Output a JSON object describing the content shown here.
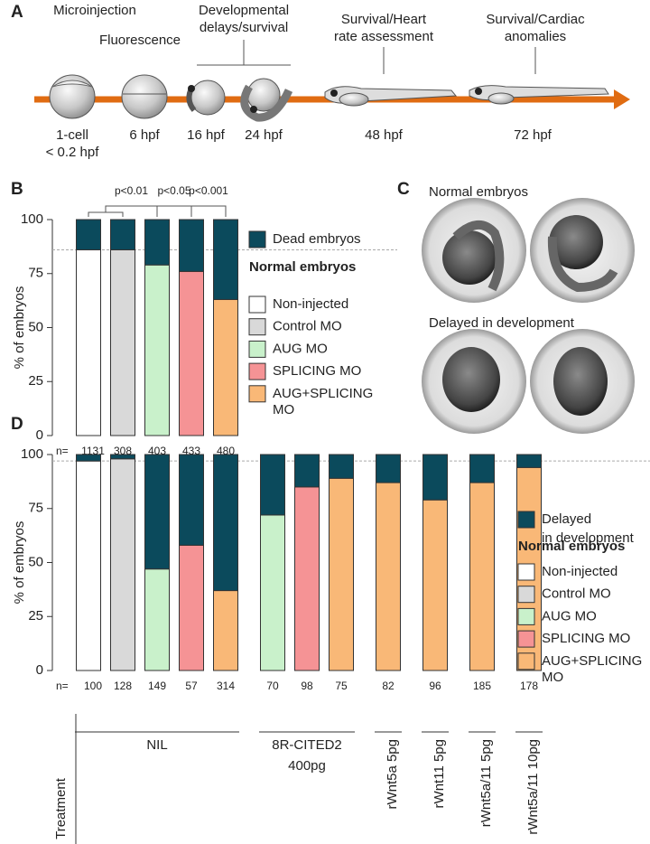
{
  "panel_a": {
    "label": "A",
    "steps": [
      [
        "Microinjection"
      ],
      [
        "Fluorescence"
      ],
      [
        "Developmental",
        "delays/survival"
      ],
      [
        "Survival/Heart",
        "rate assessment"
      ],
      [
        "Survival/Cardiac",
        "anomalies"
      ]
    ],
    "times": [
      [
        "1-cell",
        "< 0.2 hpf"
      ],
      [
        "6 hpf"
      ],
      [
        "16 hpf"
      ],
      [
        "24 hpf"
      ],
      [
        "48 hpf"
      ],
      [
        "72 hpf"
      ]
    ]
  },
  "panel_c": {
    "label": "C",
    "captions": [
      "Normal embryos",
      "Delayed in development"
    ]
  },
  "chart_data": [
    {
      "type": "stacked_bar",
      "panel_label": "B",
      "y_label": "% of embryos",
      "ylim": [
        0,
        100
      ],
      "yticks": [
        0,
        25,
        50,
        75,
        100
      ],
      "reference_line": 86,
      "n_prefix": "n=",
      "top_series": {
        "name": [
          "Dead embryos"
        ],
        "color": "#0b4a5c"
      },
      "legend_title": "Normal embryos",
      "legend": [
        {
          "name": [
            "Non-injected"
          ],
          "color": "#ffffff"
        },
        {
          "name": [
            "Control MO"
          ],
          "color": "#d9d9d9"
        },
        {
          "name": [
            "AUG MO"
          ],
          "color": "#c9f1cb"
        },
        {
          "name": [
            "SPLICING MO"
          ],
          "color": "#f59395"
        },
        {
          "name": [
            "AUG+SPLICING",
            "MO"
          ],
          "color": "#f9b877"
        }
      ],
      "groups": [
        {
          "bars": [
            {
              "color": "#ffffff",
              "normal": 86,
              "top": 14,
              "n": 1131
            },
            {
              "color": "#d9d9d9",
              "normal": 86,
              "top": 14,
              "n": 308
            },
            {
              "color": "#c9f1cb",
              "normal": 79,
              "top": 21,
              "n": 403
            },
            {
              "color": "#f59395",
              "normal": 76,
              "top": 24,
              "n": 433
            },
            {
              "color": "#f9b877",
              "normal": 63,
              "top": 37,
              "n": 480
            }
          ]
        }
      ],
      "annotations": [
        "p<0.01",
        "p<0.05",
        "p<0.001"
      ]
    },
    {
      "type": "stacked_bar",
      "panel_label": "D",
      "y_label": "% of embryos",
      "ylim": [
        0,
        100
      ],
      "yticks": [
        0,
        25,
        50,
        75,
        100
      ],
      "reference_line": 97,
      "n_prefix": "n=",
      "top_series": {
        "name": [
          "Delayed",
          "in development"
        ],
        "color": "#0b4a5c"
      },
      "legend_title": "Normal embryos",
      "legend": [
        {
          "name": [
            "Non-injected"
          ],
          "color": "#ffffff"
        },
        {
          "name": [
            "Control MO"
          ],
          "color": "#d9d9d9"
        },
        {
          "name": [
            "AUG MO"
          ],
          "color": "#c9f1cb"
        },
        {
          "name": [
            "SPLICING MO"
          ],
          "color": "#f59395"
        },
        {
          "name": [
            "AUG+SPLICING",
            "MO"
          ],
          "color": "#f9b877"
        }
      ],
      "treatment_label": "Treatment",
      "groups": [
        {
          "label": [
            "NIL"
          ],
          "bars": [
            {
              "color": "#ffffff",
              "normal": 97,
              "top": 3,
              "n": 100
            },
            {
              "color": "#d9d9d9",
              "normal": 98,
              "top": 2,
              "n": 128
            },
            {
              "color": "#c9f1cb",
              "normal": 47,
              "top": 53,
              "n": 149
            },
            {
              "color": "#f59395",
              "normal": 58,
              "top": 42,
              "n": 57
            },
            {
              "color": "#f9b877",
              "normal": 37,
              "top": 63,
              "n": 314
            }
          ]
        },
        {
          "label": [
            "8R-CITED2",
            "400pg"
          ],
          "bars": [
            {
              "color": "#c9f1cb",
              "normal": 72,
              "top": 28,
              "n": 70
            },
            {
              "color": "#f59395",
              "normal": 85,
              "top": 15,
              "n": 98
            },
            {
              "color": "#f9b877",
              "normal": 89,
              "top": 11,
              "n": 75
            }
          ]
        },
        {
          "label": [
            "rWnt5a 5pg"
          ],
          "bars": [
            {
              "color": "#f9b877",
              "normal": 87,
              "top": 13,
              "n": 82
            }
          ]
        },
        {
          "label": [
            "rWnt11 5pg"
          ],
          "bars": [
            {
              "color": "#f9b877",
              "normal": 79,
              "top": 21,
              "n": 96
            }
          ]
        },
        {
          "label": [
            "rWnt5a/11 5pg"
          ],
          "bars": [
            {
              "color": "#f9b877",
              "normal": 87,
              "top": 13,
              "n": 185
            }
          ]
        },
        {
          "label": [
            "rWnt5a/11 10pg"
          ],
          "bars": [
            {
              "color": "#f9b877",
              "normal": 94,
              "top": 6,
              "n": 178
            }
          ]
        }
      ]
    }
  ]
}
